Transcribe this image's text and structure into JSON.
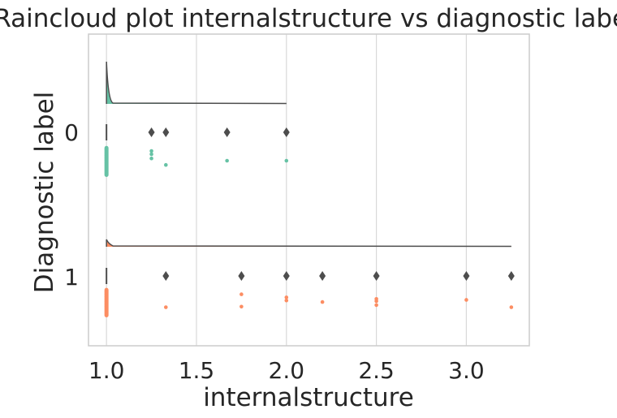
{
  "chart_data": {
    "type": "raincloud",
    "title": "Raincloud plot internalstructure vs diagnostic label",
    "xlabel": "internalstructure",
    "ylabel": "Diagnostic label",
    "xlim": [
      0.9,
      3.35
    ],
    "x_ticks": [
      1.0,
      1.5,
      2.0,
      2.5,
      3.0
    ],
    "x_tick_labels": [
      "1.0",
      "1.5",
      "2.0",
      "2.5",
      "3.0"
    ],
    "grid": "vertical",
    "colors": {
      "axis": "#cccccc",
      "grid": "#d9d9d9",
      "outline": "#4d4d4d",
      "text": "#262626"
    },
    "groups": [
      {
        "label": "0",
        "color": "#66c2a5",
        "density_peak_x": 1.0,
        "density_range": [
          1.0,
          2.0
        ],
        "box": {
          "q1": 1.0,
          "median": 1.0,
          "q3": 1.0
        },
        "outliers": [
          1.25,
          1.33,
          1.67,
          2.0
        ],
        "points": [
          [
            1.0,
            0.05
          ],
          [
            1.0,
            0.12
          ],
          [
            1.0,
            0.2
          ],
          [
            1.0,
            0.28
          ],
          [
            1.0,
            0.36
          ],
          [
            1.0,
            0.44
          ],
          [
            1.0,
            0.52
          ],
          [
            1.0,
            0.6
          ],
          [
            1.25,
            0.15
          ],
          [
            1.25,
            0.25
          ],
          [
            1.25,
            0.38
          ],
          [
            1.33,
            0.58
          ],
          [
            1.67,
            0.45
          ],
          [
            2.0,
            0.45
          ]
        ]
      },
      {
        "label": "1",
        "color": "#fc8d62",
        "density_peak_x": 1.0,
        "density_range": [
          1.0,
          3.25
        ],
        "box": {
          "q1": 1.0,
          "median": 1.0,
          "q3": 1.0
        },
        "outliers": [
          1.33,
          1.75,
          2.0,
          2.2,
          2.5,
          3.0,
          3.25
        ],
        "points": [
          [
            1.0,
            0.05
          ],
          [
            1.0,
            0.12
          ],
          [
            1.0,
            0.2
          ],
          [
            1.0,
            0.28
          ],
          [
            1.0,
            0.36
          ],
          [
            1.0,
            0.44
          ],
          [
            1.0,
            0.52
          ],
          [
            1.0,
            0.6
          ],
          [
            1.33,
            0.62
          ],
          [
            1.75,
            0.2
          ],
          [
            1.75,
            0.6
          ],
          [
            2.0,
            0.3
          ],
          [
            2.0,
            0.4
          ],
          [
            2.2,
            0.45
          ],
          [
            2.5,
            0.35
          ],
          [
            2.5,
            0.42
          ],
          [
            2.5,
            0.55
          ],
          [
            3.0,
            0.38
          ],
          [
            3.25,
            0.62
          ]
        ]
      }
    ]
  }
}
